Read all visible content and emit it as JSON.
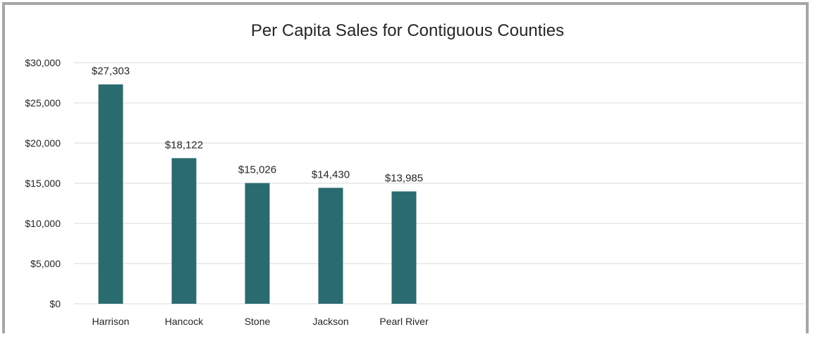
{
  "chart_data": {
    "type": "bar",
    "title": "Per Capita Sales for Contiguous Counties",
    "categories": [
      "Harrison",
      "Hancock",
      "Stone",
      "Jackson",
      "Pearl River"
    ],
    "values": [
      27303,
      18122,
      15026,
      14430,
      13985
    ],
    "data_labels": [
      "$27,303",
      "$18,122",
      "$15,026",
      "$14,430",
      "$13,985"
    ],
    "y_ticks": [
      0,
      5000,
      10000,
      15000,
      20000,
      25000,
      30000
    ],
    "y_tick_labels": [
      "$0",
      "$5,000",
      "$10,000",
      "$15,000",
      "$20,000",
      "$25,000",
      "$30,000"
    ],
    "ylim": [
      0,
      30000
    ],
    "xlabel": "",
    "ylabel": "",
    "grid": true,
    "legend": "none",
    "bar_color": "#2a6b70",
    "grid_color": "#d9d9d9"
  }
}
